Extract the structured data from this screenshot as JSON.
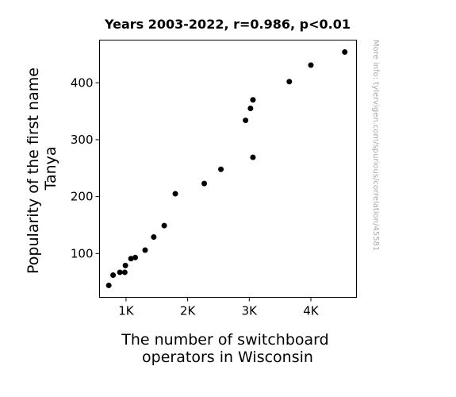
{
  "chart_data": {
    "type": "scatter",
    "title": "Years 2003-2022, r=0.986, p<0.01",
    "xlabel": [
      "The number of switchboard",
      "operators in Wisconsin"
    ],
    "ylabel": [
      "Popularity of the first name",
      "Tanya"
    ],
    "xlim": [
      570,
      4740
    ],
    "ylim": [
      23,
      475
    ],
    "xticks": [
      {
        "value": 1000,
        "label": "1K"
      },
      {
        "value": 2000,
        "label": "2K"
      },
      {
        "value": 3000,
        "label": "3K"
      },
      {
        "value": 4000,
        "label": "4K"
      }
    ],
    "yticks": [
      {
        "value": 100,
        "label": "100"
      },
      {
        "value": 200,
        "label": "200"
      },
      {
        "value": 300,
        "label": "300"
      },
      {
        "value": 400,
        "label": "400"
      }
    ],
    "grid": false,
    "marker_color": "#000000",
    "points": [
      {
        "x": 720,
        "y": 44
      },
      {
        "x": 790,
        "y": 62
      },
      {
        "x": 900,
        "y": 67
      },
      {
        "x": 980,
        "y": 67
      },
      {
        "x": 990,
        "y": 79
      },
      {
        "x": 1080,
        "y": 91
      },
      {
        "x": 1150,
        "y": 93
      },
      {
        "x": 1310,
        "y": 106
      },
      {
        "x": 1450,
        "y": 129
      },
      {
        "x": 1620,
        "y": 149
      },
      {
        "x": 1800,
        "y": 205
      },
      {
        "x": 2270,
        "y": 223
      },
      {
        "x": 2540,
        "y": 248
      },
      {
        "x": 2940,
        "y": 334
      },
      {
        "x": 3020,
        "y": 355
      },
      {
        "x": 3060,
        "y": 370
      },
      {
        "x": 3060,
        "y": 269
      },
      {
        "x": 3650,
        "y": 402
      },
      {
        "x": 4000,
        "y": 431
      },
      {
        "x": 4550,
        "y": 454
      }
    ]
  },
  "watermark": "More info: tylervigen.com/spurious/correlation/45581"
}
